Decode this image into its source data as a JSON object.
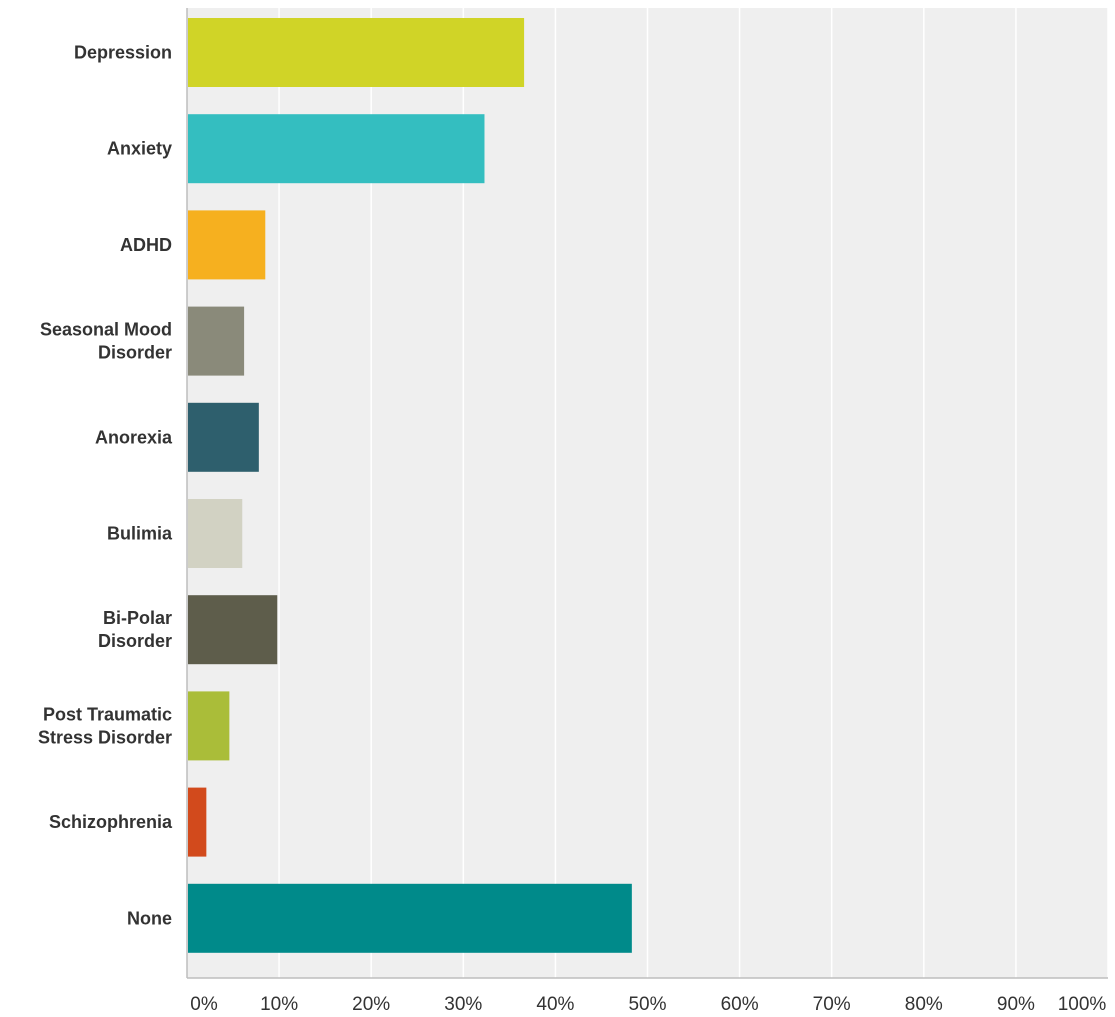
{
  "chart_data": {
    "type": "bar",
    "orientation": "horizontal",
    "categories": [
      [
        "Depression"
      ],
      [
        "Anxiety"
      ],
      [
        "ADHD"
      ],
      [
        "Seasonal Mood",
        "Disorder"
      ],
      [
        "Anorexia"
      ],
      [
        "Bulimia"
      ],
      [
        "Bi-Polar",
        "Disorder"
      ],
      [
        "Post Traumatic",
        "Stress Disorder"
      ],
      [
        "Schizophrenia"
      ],
      [
        "None"
      ]
    ],
    "values": [
      36.6,
      32.3,
      8.5,
      6.2,
      7.8,
      6.0,
      9.8,
      4.6,
      2.1,
      48.3
    ],
    "colors": [
      "#d0d427",
      "#34bec0",
      "#f6b01f",
      "#8a8a7a",
      "#2e5f6d",
      "#d2d2c3",
      "#5e5d4b",
      "#aabd39",
      "#d24a1c",
      "#008a8a"
    ],
    "xlim": [
      0,
      100
    ],
    "xticks": [
      "0%",
      "10%",
      "20%",
      "30%",
      "40%",
      "50%",
      "60%",
      "70%",
      "80%",
      "90%",
      "100%"
    ],
    "title": "",
    "xlabel": "",
    "ylabel": "",
    "grid": true,
    "plot_background": "#efefef",
    "gridline_color": "#ffffff",
    "axis_color": "#bdbdbd"
  }
}
